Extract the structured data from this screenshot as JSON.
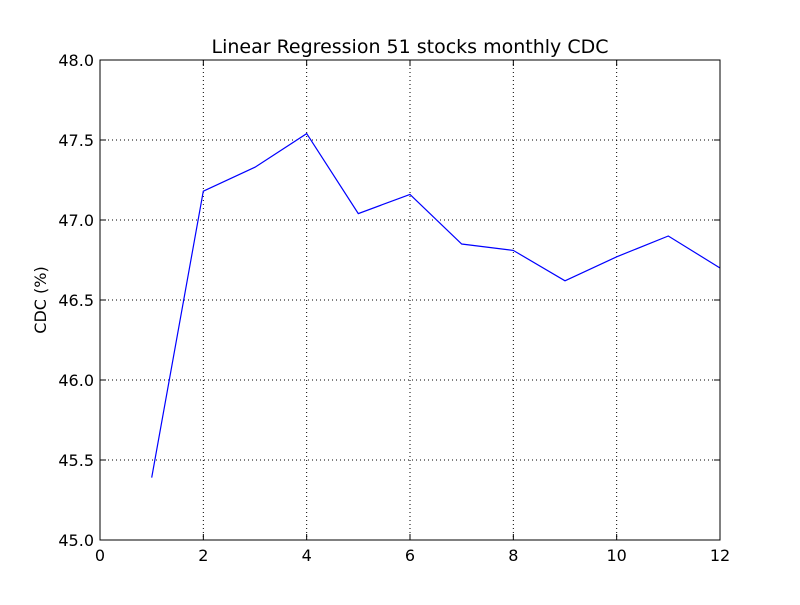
{
  "chart_data": {
    "type": "line",
    "title": "Linear Regression 51 stocks monthly CDC",
    "xlabel": "",
    "ylabel": "CDC (%)",
    "xlim": [
      0,
      12
    ],
    "ylim": [
      45.0,
      48.0
    ],
    "x_ticks": [
      "0",
      "2",
      "4",
      "6",
      "8",
      "10",
      "12"
    ],
    "y_ticks": [
      "45.0",
      "45.5",
      "46.0",
      "46.5",
      "47.0",
      "47.5",
      "48.0"
    ],
    "grid": true,
    "line_color": "#0000ff",
    "series": [
      {
        "x": [
          1,
          2,
          3,
          4,
          5,
          6,
          7,
          8,
          9,
          10,
          11,
          12
        ],
        "values": [
          45.39,
          47.18,
          47.33,
          47.54,
          47.04,
          47.16,
          46.85,
          46.81,
          46.62,
          46.77,
          46.9,
          46.7
        ]
      }
    ]
  }
}
